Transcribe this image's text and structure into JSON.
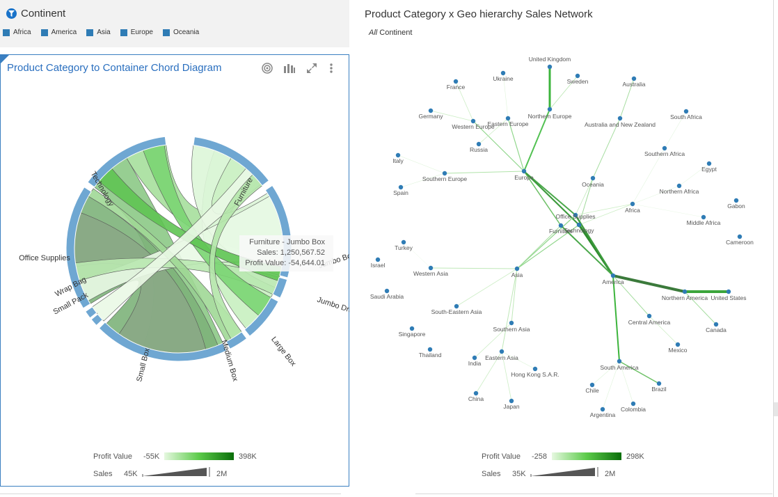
{
  "filter": {
    "title": "Continent",
    "items": [
      "Africa",
      "America",
      "Asia",
      "Europe",
      "Oceania"
    ]
  },
  "chord_panel": {
    "title": "Product Category to Container Chord Diagram",
    "tooltip": {
      "title": "Furniture - Jumbo Box",
      "sales": "Sales: 1,250,567.52",
      "profit": "Profit Value: -54,644.01"
    },
    "legend": {
      "profit_label": "Profit Value",
      "profit_min": "-55K",
      "profit_max": "398K",
      "sales_label": "Sales",
      "sales_min": "45K",
      "sales_max": "2M"
    }
  },
  "network_panel": {
    "title": "Product Category x Geo hierarchy Sales Network",
    "breadcrumb_all": "All",
    "breadcrumb_rest": " Continent",
    "legend": {
      "profit_label": "Profit Value",
      "profit_min": "-258",
      "profit_max": "298K",
      "sales_label": "Sales",
      "sales_min": "35K",
      "sales_max": "2M"
    }
  },
  "chart_data": [
    {
      "type": "chord",
      "groups": [
        "Technology",
        "Furniture",
        "Jumbo Box",
        "Jumbo Drum",
        "Large Box",
        "Medium Box",
        "Small Box",
        "Small Pack",
        "Wrap Bag",
        "Office Supplies"
      ],
      "colors": {
        "arc": "#6fa7d2",
        "profit_low": "#e8f7e4",
        "profit_high": "#0a7d0a"
      },
      "highlight": {
        "source": "Furniture",
        "target": "Jumbo Box",
        "sales": 1250567.52,
        "profit": -54644.01
      }
    },
    {
      "type": "network",
      "nodes": [
        "United Kingdom",
        "Ukraine",
        "Sweden",
        "France",
        "Australia",
        "Germany",
        "Northern Europe",
        "Western Europe",
        "Eastern Europe",
        "Australia and New Zealand",
        "South Africa",
        "Russia",
        "Southern Africa",
        "Italy",
        "Egypt",
        "Southern Europe",
        "Europe",
        "Oceania",
        "Spain",
        "Northern Africa",
        "Gabon",
        "Africa",
        "Office Supplies",
        "Middle Africa",
        "Furniture",
        "Technology",
        "Cameroon",
        "Turkey",
        "Israel",
        "Western Asia",
        "Asia",
        "America",
        "Saudi Arabia",
        "Northern America",
        "United States",
        "South-Eastern Asia",
        "Central America",
        "Southern Asia",
        "Canada",
        "Singapore",
        "Mexico",
        "Thailand",
        "Eastern Asia",
        "India",
        "Hong Kong S.A.R.",
        "South America",
        "Brazil",
        "Chile",
        "China",
        "Japan",
        "Colombia",
        "Argentina"
      ],
      "node_color": "#2f7cb5",
      "edge_color_low": "#d9f2d0",
      "edge_color_high": "#2e7d32"
    }
  ]
}
